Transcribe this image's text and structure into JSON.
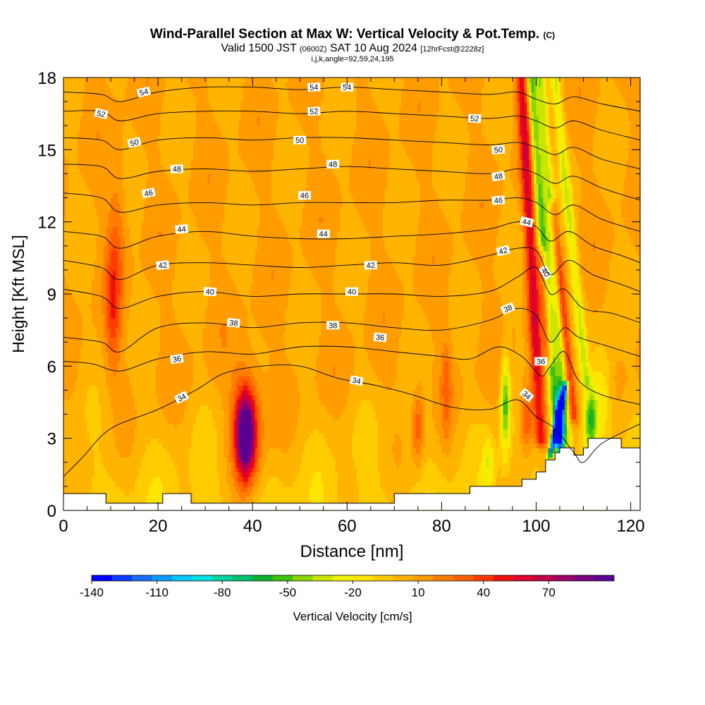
{
  "title_main": "Wind-Parallel Section at Max W: Vertical Velocity & Pot.Temp.",
  "title_mark": "(C)",
  "subtitle_a": "Valid 1500 JST",
  "subtitle_b": "(0600Z)",
  "subtitle_c": "SAT 10 Aug 2024",
  "subtitle_d": "[12hrFcst@2228z]",
  "subtitle2": "i,j,k,angle=92,59,24,195",
  "chart_data": {
    "type": "heatmap",
    "xlabel": "Distance [nm]",
    "ylabel": "Height [Kft MSL]",
    "xlim": [
      0,
      122
    ],
    "ylim": [
      0,
      18
    ],
    "x_ticks": [
      "0",
      "20",
      "40",
      "60",
      "80",
      "100",
      "120"
    ],
    "y_ticks": [
      "0",
      "3",
      "6",
      "9",
      "12",
      "15",
      "18"
    ],
    "colorbar": {
      "label": "Vertical Velocity [cm/s]",
      "tick_labels": [
        "-140",
        "-110",
        "-80",
        "-50",
        "-20",
        "10",
        "40",
        "70"
      ],
      "tick_values": [
        -140,
        -110,
        -80,
        -50,
        -20,
        10,
        40,
        70
      ],
      "min": -140,
      "max": 100,
      "colors": [
        "#0000ff",
        "#0a3cff",
        "#1a6cff",
        "#0a9cff",
        "#00c8ff",
        "#00e0e0",
        "#00d2a0",
        "#00c070",
        "#10b030",
        "#40c010",
        "#8ad400",
        "#c8e600",
        "#f0f000",
        "#ffe600",
        "#ffcc00",
        "#ffb400",
        "#ff9c00",
        "#ff7e00",
        "#ff6000",
        "#ff3c00",
        "#f01010",
        "#dc0030",
        "#be0046",
        "#9c0064",
        "#7a0080",
        "#5a0090"
      ]
    },
    "theta_contours": [
      {
        "label": "34",
        "points": [
          [
            0,
            1.4
          ],
          [
            4,
            2.2
          ],
          [
            10,
            3.4
          ],
          [
            20,
            4.2
          ],
          [
            28,
            5.0
          ],
          [
            34,
            5.7
          ],
          [
            42,
            6.0
          ],
          [
            50,
            6.0
          ],
          [
            58,
            5.5
          ],
          [
            66,
            5.2
          ],
          [
            74,
            4.8
          ],
          [
            82,
            4.3
          ],
          [
            90,
            4.2
          ],
          [
            96,
            4.6
          ],
          [
            100,
            3.9
          ],
          [
            104,
            3.4
          ],
          [
            108,
            2.4
          ],
          [
            110,
            2.0
          ],
          [
            114,
            2.8
          ],
          [
            122,
            3.6
          ]
        ],
        "label_at": [
          [
            25,
            4.7
          ],
          [
            62,
            5.4
          ],
          [
            98,
            4.8
          ]
        ]
      },
      {
        "label": "36",
        "points": [
          [
            0,
            6.2
          ],
          [
            6,
            6.1
          ],
          [
            12,
            5.8
          ],
          [
            20,
            6.3
          ],
          [
            30,
            6.6
          ],
          [
            40,
            6.5
          ],
          [
            50,
            6.8
          ],
          [
            60,
            6.8
          ],
          [
            70,
            6.6
          ],
          [
            80,
            6.4
          ],
          [
            86,
            6.3
          ],
          [
            92,
            6.8
          ],
          [
            97,
            6.4
          ],
          [
            101,
            5.6
          ],
          [
            103,
            6.0
          ],
          [
            106,
            6.6
          ],
          [
            109,
            5.4
          ],
          [
            114,
            4.8
          ],
          [
            122,
            4.4
          ]
        ],
        "label_at": [
          [
            24,
            6.3
          ],
          [
            67,
            7.2
          ],
          [
            101,
            6.2
          ]
        ]
      },
      {
        "label": "38",
        "points": [
          [
            0,
            7.2
          ],
          [
            8,
            7.0
          ],
          [
            12,
            6.6
          ],
          [
            20,
            7.6
          ],
          [
            30,
            7.8
          ],
          [
            40,
            7.6
          ],
          [
            50,
            7.8
          ],
          [
            60,
            7.8
          ],
          [
            70,
            7.6
          ],
          [
            80,
            7.5
          ],
          [
            90,
            7.9
          ],
          [
            96,
            8.4
          ],
          [
            100,
            8.1
          ],
          [
            103,
            7.0
          ],
          [
            106,
            7.6
          ],
          [
            109,
            7.2
          ],
          [
            114,
            6.9
          ],
          [
            122,
            6.4
          ]
        ],
        "label_at": [
          [
            36,
            7.8
          ],
          [
            57,
            7.7
          ],
          [
            94,
            8.4
          ]
        ]
      },
      {
        "label": "40",
        "points": [
          [
            0,
            9.2
          ],
          [
            8,
            8.9
          ],
          [
            12,
            8.4
          ],
          [
            20,
            8.9
          ],
          [
            30,
            9.1
          ],
          [
            40,
            8.9
          ],
          [
            50,
            9.0
          ],
          [
            60,
            9.0
          ],
          [
            70,
            9.0
          ],
          [
            80,
            8.9
          ],
          [
            90,
            9.1
          ],
          [
            96,
            9.7
          ],
          [
            100,
            10.1
          ],
          [
            103,
            9.0
          ],
          [
            106,
            9.2
          ],
          [
            110,
            8.4
          ],
          [
            116,
            8.2
          ],
          [
            122,
            7.8
          ]
        ],
        "label_at": [
          [
            31,
            9.1
          ],
          [
            61,
            9.1
          ],
          [
            102,
            9.9
          ]
        ]
      },
      {
        "label": "42",
        "points": [
          [
            0,
            10.4
          ],
          [
            8,
            10.1
          ],
          [
            12,
            9.6
          ],
          [
            20,
            10.2
          ],
          [
            30,
            10.3
          ],
          [
            40,
            10.2
          ],
          [
            50,
            10.1
          ],
          [
            60,
            10.2
          ],
          [
            70,
            10.3
          ],
          [
            80,
            10.2
          ],
          [
            90,
            10.6
          ],
          [
            96,
            10.9
          ],
          [
            100,
            10.8
          ],
          [
            103,
            9.8
          ],
          [
            107,
            10.4
          ],
          [
            112,
            9.8
          ],
          [
            118,
            9.4
          ],
          [
            122,
            9.1
          ]
        ],
        "label_at": [
          [
            21,
            10.2
          ],
          [
            65,
            10.2
          ],
          [
            93,
            10.8
          ]
        ]
      },
      {
        "label": "44",
        "points": [
          [
            0,
            11.6
          ],
          [
            8,
            11.4
          ],
          [
            12,
            10.9
          ],
          [
            20,
            11.4
          ],
          [
            30,
            11.6
          ],
          [
            40,
            11.4
          ],
          [
            50,
            11.3
          ],
          [
            60,
            11.3
          ],
          [
            70,
            11.4
          ],
          [
            80,
            11.5
          ],
          [
            90,
            11.7
          ],
          [
            96,
            12.0
          ],
          [
            100,
            11.8
          ],
          [
            103,
            11.2
          ],
          [
            107,
            11.6
          ],
          [
            112,
            11.0
          ],
          [
            118,
            10.6
          ],
          [
            122,
            10.3
          ]
        ],
        "label_at": [
          [
            25,
            11.7
          ],
          [
            55,
            11.5
          ],
          [
            98,
            12.0
          ]
        ]
      },
      {
        "label": "46",
        "points": [
          [
            0,
            13.2
          ],
          [
            8,
            13.0
          ],
          [
            12,
            12.4
          ],
          [
            20,
            12.7
          ],
          [
            30,
            12.8
          ],
          [
            40,
            12.7
          ],
          [
            50,
            12.8
          ],
          [
            60,
            12.8
          ],
          [
            70,
            12.8
          ],
          [
            80,
            12.9
          ],
          [
            90,
            12.9
          ],
          [
            96,
            13.0
          ],
          [
            100,
            12.8
          ],
          [
            104,
            12.3
          ],
          [
            108,
            12.7
          ],
          [
            114,
            12.1
          ],
          [
            122,
            11.6
          ]
        ],
        "label_at": [
          [
            18,
            13.2
          ],
          [
            51,
            13.1
          ],
          [
            92,
            12.9
          ]
        ]
      },
      {
        "label": "48",
        "points": [
          [
            0,
            14.4
          ],
          [
            8,
            14.3
          ],
          [
            12,
            13.8
          ],
          [
            20,
            14.1
          ],
          [
            30,
            14.2
          ],
          [
            40,
            14.1
          ],
          [
            50,
            14.2
          ],
          [
            60,
            14.3
          ],
          [
            70,
            14.2
          ],
          [
            80,
            14.1
          ],
          [
            90,
            14.0
          ],
          [
            96,
            14.2
          ],
          [
            100,
            14.0
          ],
          [
            104,
            13.6
          ],
          [
            108,
            13.9
          ],
          [
            114,
            13.4
          ],
          [
            122,
            12.9
          ]
        ],
        "label_at": [
          [
            24,
            14.2
          ],
          [
            57,
            14.4
          ],
          [
            92,
            13.9
          ]
        ]
      },
      {
        "label": "50",
        "points": [
          [
            0,
            15.5
          ],
          [
            8,
            15.4
          ],
          [
            12,
            15.0
          ],
          [
            20,
            15.4
          ],
          [
            30,
            15.5
          ],
          [
            40,
            15.4
          ],
          [
            50,
            15.5
          ],
          [
            60,
            15.5
          ],
          [
            70,
            15.4
          ],
          [
            80,
            15.3
          ],
          [
            90,
            15.2
          ],
          [
            96,
            15.3
          ],
          [
            100,
            15.1
          ],
          [
            104,
            14.8
          ],
          [
            108,
            15.1
          ],
          [
            114,
            14.6
          ],
          [
            122,
            14.2
          ]
        ],
        "label_at": [
          [
            15,
            15.3
          ],
          [
            50,
            15.4
          ],
          [
            92,
            15.0
          ]
        ]
      },
      {
        "label": "52",
        "points": [
          [
            0,
            16.6
          ],
          [
            8,
            16.6
          ],
          [
            12,
            16.2
          ],
          [
            20,
            16.5
          ],
          [
            30,
            16.6
          ],
          [
            40,
            16.6
          ],
          [
            50,
            16.5
          ],
          [
            60,
            16.6
          ],
          [
            70,
            16.5
          ],
          [
            80,
            16.4
          ],
          [
            90,
            16.3
          ],
          [
            96,
            16.4
          ],
          [
            100,
            16.2
          ],
          [
            104,
            15.9
          ],
          [
            108,
            16.2
          ],
          [
            114,
            15.8
          ],
          [
            122,
            15.4
          ]
        ],
        "label_at": [
          [
            8,
            16.5
          ],
          [
            53,
            16.6
          ],
          [
            87,
            16.3
          ]
        ]
      },
      {
        "label": "54",
        "points": [
          [
            0,
            17.4
          ],
          [
            8,
            17.3
          ],
          [
            12,
            17.0
          ],
          [
            20,
            17.4
          ],
          [
            30,
            17.6
          ],
          [
            40,
            17.6
          ],
          [
            50,
            17.5
          ],
          [
            60,
            17.6
          ],
          [
            70,
            17.5
          ],
          [
            80,
            17.4
          ],
          [
            90,
            17.3
          ],
          [
            96,
            17.4
          ],
          [
            100,
            17.1
          ],
          [
            104,
            16.9
          ],
          [
            108,
            17.2
          ],
          [
            114,
            16.9
          ],
          [
            122,
            16.6
          ]
        ],
        "label_at": [
          [
            17,
            17.4
          ],
          [
            53,
            17.6
          ],
          [
            60,
            17.6
          ]
        ]
      }
    ],
    "terrain": [
      [
        0,
        0.7
      ],
      [
        9,
        0.7
      ],
      [
        9,
        0.3
      ],
      [
        20,
        0.3
      ],
      [
        21,
        0.3
      ],
      [
        21,
        0.7
      ],
      [
        23,
        0.7
      ],
      [
        23,
        0.7
      ],
      [
        27,
        0.7
      ],
      [
        27,
        0.3
      ],
      [
        70,
        0.3
      ],
      [
        70,
        0.7
      ],
      [
        86,
        0.7
      ],
      [
        86,
        1.0
      ],
      [
        97,
        1.0
      ],
      [
        97,
        1.3
      ],
      [
        100,
        1.3
      ],
      [
        100,
        1.6
      ],
      [
        102,
        1.6
      ],
      [
        102,
        2.1
      ],
      [
        104,
        2.1
      ],
      [
        104,
        2.4
      ],
      [
        105,
        2.4
      ],
      [
        105,
        2.6
      ],
      [
        108,
        2.6
      ],
      [
        108,
        2.3
      ],
      [
        110,
        2.3
      ],
      [
        110,
        2.6
      ],
      [
        111,
        2.6
      ],
      [
        111,
        3.0
      ],
      [
        118,
        3.0
      ],
      [
        118,
        2.6
      ],
      [
        122,
        2.6
      ]
    ],
    "w_features": [
      {
        "x": 38.5,
        "y": 3.2,
        "sx": 1.9,
        "sy": 1.6,
        "w": 98
      },
      {
        "x": 39.0,
        "y": 3.3,
        "sx": 3.5,
        "sy": 2.6,
        "w": 35
      },
      {
        "x": 10.5,
        "y": 8.5,
        "sx": 1.6,
        "sy": 2.6,
        "w": 30
      },
      {
        "x": 11.5,
        "y": 12.0,
        "sx": 2.0,
        "sy": 3.0,
        "w": 14
      },
      {
        "x": 75.0,
        "y": 3.5,
        "sx": 1.2,
        "sy": 1.6,
        "w": 30
      },
      {
        "x": 81.0,
        "y": 5.0,
        "sx": 1.0,
        "sy": 2.0,
        "w": 22
      },
      {
        "x": 98.0,
        "y": 3.8,
        "sx": 1.4,
        "sy": 1.4,
        "w": 38
      },
      {
        "x": 93.5,
        "y": 4.5,
        "sx": 1.0,
        "sy": 2.0,
        "w": -60
      },
      {
        "x": 90.0,
        "y": 2.0,
        "sx": 1.0,
        "sy": 1.0,
        "w": -25
      },
      {
        "x": 111.5,
        "y": 3.8,
        "sx": 1.4,
        "sy": 1.4,
        "w": -60
      },
      {
        "x": 114.0,
        "y": 4.8,
        "sx": 2.2,
        "sy": 2.2,
        "w": -30
      },
      {
        "x": 105.0,
        "y": 3.5,
        "sx": 0.9,
        "sy": 1.3,
        "w": -140
      }
    ],
    "w_bands": [
      {
        "x0": 101.0,
        "y0": 3.0,
        "x1": 97.0,
        "y1": 18.0,
        "width": 1.3,
        "w": 50
      },
      {
        "x0": 102.6,
        "y0": 6.5,
        "x1": 101.2,
        "y1": 10.5,
        "width": 0.9,
        "w": 45
      },
      {
        "x0": 104.5,
        "y0": 3.0,
        "x1": 99.0,
        "y1": 18.0,
        "width": 1.2,
        "w": -60
      },
      {
        "x0": 106.5,
        "y0": 2.8,
        "x1": 101.0,
        "y1": 18.0,
        "width": 1.0,
        "w": -40
      },
      {
        "x0": 108.0,
        "y0": 4.0,
        "x1": 103.5,
        "y1": 12.5,
        "width": 1.0,
        "w": 40
      },
      {
        "x0": 110.5,
        "y0": 5.5,
        "x1": 104.0,
        "y1": 18.0,
        "width": 1.0,
        "w": -35
      },
      {
        "x0": 103.2,
        "y0": 2.5,
        "x1": 106.0,
        "y1": 5.0,
        "width": 0.6,
        "w": -120
      }
    ]
  }
}
